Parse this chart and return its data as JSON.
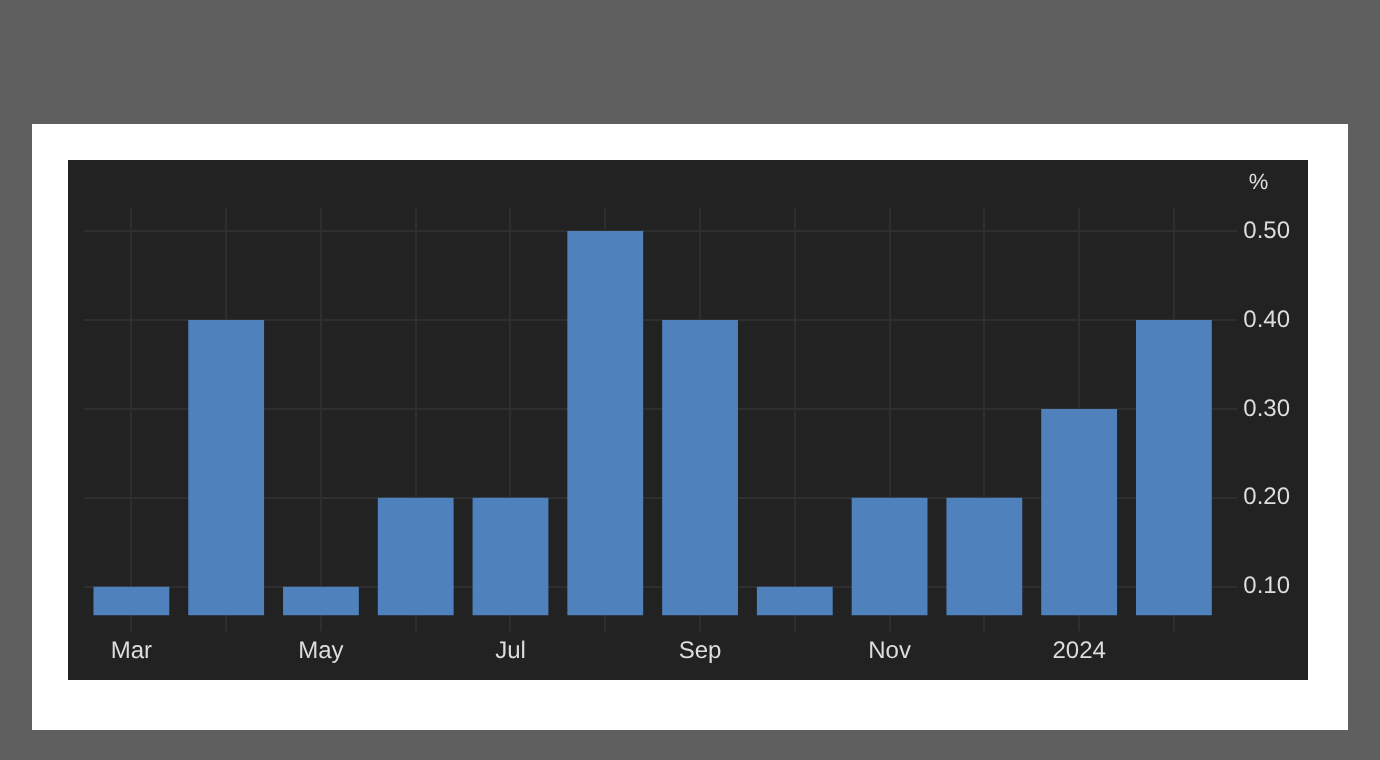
{
  "chart_data": {
    "type": "bar",
    "ylabel": "%",
    "categories": [
      "Mar",
      null,
      "May",
      null,
      "Jul",
      null,
      "Sep",
      null,
      "Nov",
      null,
      "2024",
      null
    ],
    "values": [
      0.1,
      0.4,
      0.1,
      0.2,
      0.2,
      0.5,
      0.4,
      0.1,
      0.2,
      0.2,
      0.3,
      0.4
    ],
    "color": "#4f81bd",
    "ylim": [
      0.068,
      0.526
    ],
    "yticks": [
      {
        "value": 0.1,
        "label": "0.10"
      },
      {
        "value": 0.2,
        "label": "0.20"
      },
      {
        "value": 0.3,
        "label": "0.30"
      },
      {
        "value": 0.4,
        "label": "0.40"
      },
      {
        "value": 0.5,
        "label": "0.50"
      }
    ],
    "grid": true
  }
}
